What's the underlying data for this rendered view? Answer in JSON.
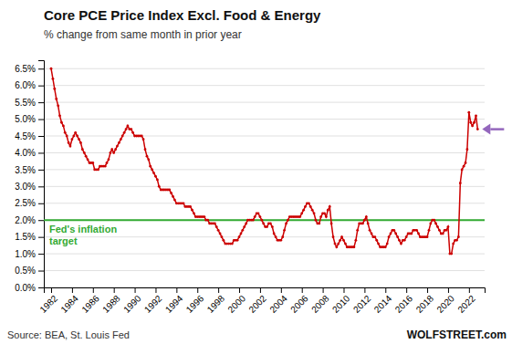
{
  "chart_data": {
    "type": "line",
    "title": "Core PCE Price Index Excl. Food & Energy",
    "subtitle": "% change from same month in prior year",
    "source": "Source: BEA, St. Louis Fed",
    "credit": "WOLFSTREET.com",
    "color": "#cc0000",
    "marker": "circle",
    "grid": true,
    "target_line": {
      "value": 2.0,
      "label": "Fed's inflation\ntarget",
      "color": "#33aa33"
    },
    "xlim": [
      1981.3,
      2023.5
    ],
    "xticks": [
      1982,
      1984,
      1986,
      1988,
      1990,
      1992,
      1994,
      1996,
      1998,
      2000,
      2002,
      2004,
      2006,
      2008,
      2010,
      2012,
      2014,
      2016,
      2018,
      2020,
      2022
    ],
    "ylim": [
      0.0,
      6.75
    ],
    "yticks": [
      {
        "value": 0.0,
        "label": "0.0%"
      },
      {
        "value": 0.5,
        "label": "0.5%"
      },
      {
        "value": 1.0,
        "label": "1.0%"
      },
      {
        "value": 1.5,
        "label": "1.5%"
      },
      {
        "value": 2.0,
        "label": "2.0%"
      },
      {
        "value": 2.5,
        "label": "2.5%"
      },
      {
        "value": 3.0,
        "label": "3.0%"
      },
      {
        "value": 3.5,
        "label": "3.5%"
      },
      {
        "value": 4.0,
        "label": "4.0%"
      },
      {
        "value": 4.5,
        "label": "4.5%"
      },
      {
        "value": 5.0,
        "label": "5.0%"
      },
      {
        "value": 5.5,
        "label": "5.5%"
      },
      {
        "value": 6.0,
        "label": "6.0%"
      },
      {
        "value": 6.5,
        "label": "6.5%"
      }
    ],
    "x": [
      1982.0,
      1982.17,
      1982.33,
      1982.5,
      1982.67,
      1982.83,
      1983.0,
      1983.17,
      1983.33,
      1983.5,
      1983.67,
      1983.83,
      1984.0,
      1984.17,
      1984.33,
      1984.5,
      1984.67,
      1984.83,
      1985.0,
      1985.17,
      1985.33,
      1985.5,
      1985.67,
      1985.83,
      1986.0,
      1986.17,
      1986.33,
      1986.5,
      1986.67,
      1986.83,
      1987.0,
      1987.17,
      1987.33,
      1987.5,
      1987.67,
      1987.83,
      1988.0,
      1988.17,
      1988.33,
      1988.5,
      1988.67,
      1988.83,
      1989.0,
      1989.17,
      1989.33,
      1989.5,
      1989.67,
      1989.83,
      1990.0,
      1990.17,
      1990.33,
      1990.5,
      1990.67,
      1990.83,
      1991.0,
      1991.17,
      1991.33,
      1991.5,
      1991.67,
      1991.83,
      1992.0,
      1992.17,
      1992.33,
      1992.5,
      1992.67,
      1992.83,
      1993.0,
      1993.17,
      1993.33,
      1993.5,
      1993.67,
      1993.83,
      1994.0,
      1994.17,
      1994.33,
      1994.5,
      1994.67,
      1994.83,
      1995.0,
      1995.17,
      1995.33,
      1995.5,
      1995.67,
      1995.83,
      1996.0,
      1996.17,
      1996.33,
      1996.5,
      1996.67,
      1996.83,
      1997.0,
      1997.17,
      1997.33,
      1997.5,
      1997.67,
      1997.83,
      1998.0,
      1998.17,
      1998.33,
      1998.5,
      1998.67,
      1998.83,
      1999.0,
      1999.17,
      1999.33,
      1999.5,
      1999.67,
      1999.83,
      2000.0,
      2000.17,
      2000.33,
      2000.5,
      2000.67,
      2000.83,
      2001.0,
      2001.17,
      2001.33,
      2001.5,
      2001.67,
      2001.83,
      2002.0,
      2002.17,
      2002.33,
      2002.5,
      2002.67,
      2002.83,
      2003.0,
      2003.17,
      2003.33,
      2003.5,
      2003.67,
      2003.83,
      2004.0,
      2004.17,
      2004.33,
      2004.5,
      2004.67,
      2004.83,
      2005.0,
      2005.17,
      2005.33,
      2005.5,
      2005.67,
      2005.83,
      2006.0,
      2006.17,
      2006.33,
      2006.5,
      2006.67,
      2006.83,
      2007.0,
      2007.17,
      2007.33,
      2007.5,
      2007.67,
      2007.83,
      2008.0,
      2008.17,
      2008.33,
      2008.5,
      2008.67,
      2008.83,
      2009.0,
      2009.17,
      2009.33,
      2009.5,
      2009.67,
      2009.83,
      2010.0,
      2010.17,
      2010.33,
      2010.5,
      2010.67,
      2010.83,
      2011.0,
      2011.17,
      2011.33,
      2011.5,
      2011.67,
      2011.83,
      2012.0,
      2012.17,
      2012.33,
      2012.5,
      2012.67,
      2012.83,
      2013.0,
      2013.17,
      2013.33,
      2013.5,
      2013.67,
      2013.83,
      2014.0,
      2014.17,
      2014.33,
      2014.5,
      2014.67,
      2014.83,
      2015.0,
      2015.17,
      2015.33,
      2015.5,
      2015.67,
      2015.83,
      2016.0,
      2016.17,
      2016.33,
      2016.5,
      2016.67,
      2016.83,
      2017.0,
      2017.17,
      2017.33,
      2017.5,
      2017.67,
      2017.83,
      2018.0,
      2018.17,
      2018.33,
      2018.5,
      2018.67,
      2018.83,
      2019.0,
      2019.17,
      2019.33,
      2019.5,
      2019.67,
      2019.83,
      2020.0,
      2020.17,
      2020.33,
      2020.5,
      2020.67,
      2020.83,
      2021.0,
      2021.17,
      2021.33,
      2021.5,
      2021.67,
      2021.83,
      2022.0,
      2022.17,
      2022.33,
      2022.5,
      2022.67,
      2022.83
    ],
    "values": [
      6.5,
      6.2,
      5.9,
      5.6,
      5.4,
      5.1,
      4.9,
      4.8,
      4.6,
      4.5,
      4.3,
      4.2,
      4.4,
      4.5,
      4.6,
      4.5,
      4.4,
      4.3,
      4.1,
      4.0,
      3.9,
      3.8,
      3.7,
      3.7,
      3.7,
      3.5,
      3.5,
      3.5,
      3.6,
      3.6,
      3.6,
      3.6,
      3.7,
      3.8,
      4.0,
      4.1,
      4.0,
      4.1,
      4.2,
      4.3,
      4.4,
      4.5,
      4.6,
      4.7,
      4.8,
      4.7,
      4.7,
      4.6,
      4.5,
      4.5,
      4.5,
      4.5,
      4.5,
      4.4,
      4.1,
      3.9,
      3.8,
      3.6,
      3.5,
      3.4,
      3.3,
      3.2,
      3.0,
      2.9,
      2.9,
      2.9,
      2.9,
      2.9,
      2.9,
      2.8,
      2.7,
      2.6,
      2.5,
      2.5,
      2.5,
      2.5,
      2.5,
      2.4,
      2.4,
      2.4,
      2.4,
      2.3,
      2.2,
      2.1,
      2.1,
      2.1,
      2.1,
      2.1,
      2.1,
      2.0,
      2.0,
      1.9,
      1.9,
      1.9,
      1.9,
      1.8,
      1.7,
      1.6,
      1.5,
      1.4,
      1.3,
      1.3,
      1.3,
      1.3,
      1.3,
      1.4,
      1.4,
      1.4,
      1.5,
      1.6,
      1.7,
      1.8,
      1.9,
      2.0,
      2.0,
      2.0,
      2.0,
      2.1,
      2.2,
      2.2,
      2.1,
      2.0,
      1.9,
      1.8,
      1.8,
      1.9,
      1.9,
      1.8,
      1.6,
      1.5,
      1.4,
      1.4,
      1.4,
      1.5,
      1.7,
      1.9,
      2.0,
      2.1,
      2.1,
      2.1,
      2.1,
      2.1,
      2.1,
      2.1,
      2.2,
      2.3,
      2.4,
      2.5,
      2.5,
      2.4,
      2.3,
      2.2,
      2.0,
      1.9,
      1.9,
      2.1,
      2.2,
      2.2,
      2.1,
      2.3,
      2.4,
      1.9,
      1.5,
      1.3,
      1.2,
      1.3,
      1.4,
      1.5,
      1.4,
      1.3,
      1.2,
      1.2,
      1.2,
      1.2,
      1.2,
      1.4,
      1.7,
      1.9,
      1.9,
      1.9,
      2.0,
      2.1,
      1.9,
      1.7,
      1.6,
      1.5,
      1.5,
      1.4,
      1.3,
      1.2,
      1.2,
      1.2,
      1.2,
      1.3,
      1.5,
      1.6,
      1.7,
      1.7,
      1.6,
      1.5,
      1.4,
      1.3,
      1.4,
      1.4,
      1.5,
      1.6,
      1.6,
      1.6,
      1.7,
      1.7,
      1.7,
      1.6,
      1.5,
      1.5,
      1.5,
      1.5,
      1.5,
      1.7,
      1.9,
      2.0,
      2.0,
      1.9,
      1.8,
      1.7,
      1.6,
      1.6,
      1.7,
      1.7,
      1.8,
      1.0,
      1.0,
      1.3,
      1.4,
      1.4,
      1.5,
      3.1,
      3.5,
      3.6,
      3.7,
      4.1,
      5.2,
      4.9,
      4.8,
      4.9,
      5.1,
      4.7
    ]
  }
}
